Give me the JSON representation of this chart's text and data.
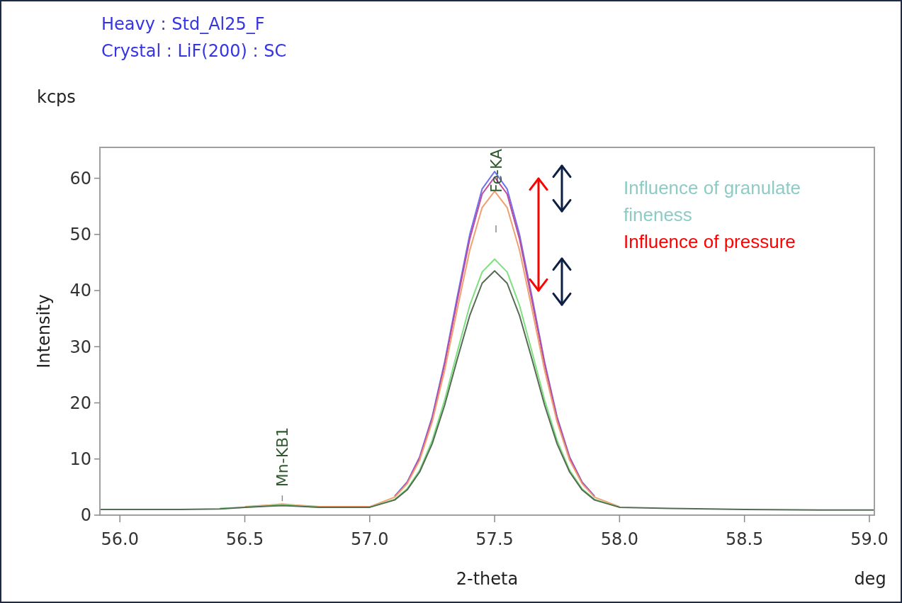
{
  "chart_data": {
    "type": "line",
    "title": "Heavy : Std_Al25_F",
    "subtitle": "Crystal : LiF(200) : SC",
    "xlabel": "2-theta",
    "ylabel": "Intensity",
    "x": [
      55.92,
      56.0,
      56.2,
      56.4,
      56.5,
      56.6,
      56.65,
      56.7,
      56.8,
      57.0,
      57.1,
      57.15,
      57.2,
      57.25,
      57.3,
      57.35,
      57.4,
      57.45,
      57.5,
      57.55,
      57.6,
      57.65,
      57.7,
      57.75,
      57.8,
      57.85,
      57.9,
      58.0,
      58.2,
      58.5,
      58.8,
      59.0,
      59.02
    ],
    "series": [
      {
        "color": "#7070f0",
        "values": [
          null,
          null,
          null,
          null,
          null,
          null,
          null,
          null,
          null,
          null,
          3.4,
          5.9,
          10.4,
          17.5,
          27.3,
          38.8,
          49.9,
          58.1,
          61.2,
          58.1,
          49.9,
          38.8,
          27.3,
          17.5,
          10.4,
          5.9,
          3.4,
          null,
          null,
          null,
          null,
          null,
          null
        ]
      },
      {
        "color": "#c04a9a",
        "values": [
          null,
          null,
          null,
          null,
          null,
          null,
          null,
          null,
          null,
          null,
          3.3,
          5.8,
          10.2,
          17.2,
          26.9,
          38.1,
          49.1,
          57.2,
          60.2,
          57.2,
          49.1,
          38.1,
          26.9,
          17.2,
          10.2,
          5.8,
          3.3,
          null,
          null,
          null,
          null,
          null,
          null
        ]
      },
      {
        "color": "#f0a070",
        "values": [
          null,
          null,
          null,
          null,
          1.5,
          1.8,
          2.0,
          1.8,
          1.5,
          1.5,
          3.2,
          5.6,
          9.8,
          16.6,
          25.8,
          36.6,
          47.1,
          54.8,
          57.7,
          54.8,
          47.1,
          36.6,
          25.8,
          16.6,
          9.8,
          5.6,
          3.2,
          1.5,
          null,
          null,
          null,
          null,
          null
        ]
      },
      {
        "color": "#7ee07e",
        "values": [
          null,
          null,
          null,
          1.2,
          1.4,
          1.7,
          1.8,
          1.7,
          1.4,
          1.4,
          2.8,
          4.7,
          8.0,
          13.3,
          20.5,
          29.0,
          37.3,
          43.3,
          45.6,
          43.3,
          37.3,
          29.0,
          20.5,
          13.3,
          8.0,
          4.7,
          2.8,
          1.4,
          null,
          null,
          null,
          null,
          null
        ]
      },
      {
        "color": "#556b55",
        "values": [
          1.0,
          1.0,
          1.0,
          1.1,
          1.4,
          1.6,
          1.7,
          1.6,
          1.4,
          1.4,
          2.7,
          4.5,
          7.7,
          12.7,
          19.6,
          27.7,
          35.5,
          41.3,
          43.5,
          41.3,
          35.5,
          27.7,
          19.6,
          12.7,
          7.7,
          4.5,
          2.7,
          1.4,
          1.2,
          1.0,
          0.9,
          0.9,
          0.9
        ]
      }
    ],
    "xlim": [
      55.92,
      59.02
    ],
    "ylim": [
      0,
      65.5
    ],
    "xticks": [
      {
        "value": 56,
        "label": "56.0"
      },
      56.5,
      {
        "value": 57,
        "label": "57.0"
      },
      57.5,
      {
        "value": 58,
        "label": "58.0"
      },
      58.5,
      {
        "value": 59,
        "label": "59.0"
      }
    ],
    "yticks": [
      0,
      10,
      20,
      30,
      40,
      50,
      60
    ],
    "grid": false,
    "marker": "none",
    "line_style": "solid",
    "annotations": [
      "kcps",
      "deg",
      {
        "text": "Mn-KB1",
        "x": 56.65,
        "y": 2.5
      },
      "Fe-KA",
      "Influence of granulate fineness",
      "Influence of pressure"
    ]
  }
}
